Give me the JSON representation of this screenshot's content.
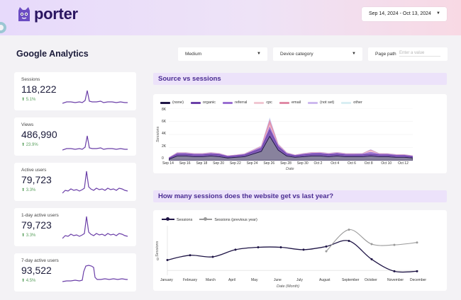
{
  "header": {
    "logo_text": "porter",
    "date_range": "Sep 14, 2024 - Oct 13, 2024"
  },
  "page_title": "Google Analytics",
  "filters": {
    "medium": "Medium",
    "device_category": "Device category",
    "page_path_label": "Page path",
    "page_path_placeholder": "Enter a value"
  },
  "kpis": [
    {
      "label": "Sessions",
      "value": "118,222",
      "change": "5.1%"
    },
    {
      "label": "Views",
      "value": "486,990",
      "change": "23.9%"
    },
    {
      "label": "Active users",
      "value": "79,723",
      "change": "3.3%"
    },
    {
      "label": "1-day active users",
      "value": "79,723",
      "change": "3.3%"
    },
    {
      "label": "7-day active users",
      "value": "93,522",
      "change": "4.5%"
    }
  ],
  "source_section": {
    "title": "Source vs sessions",
    "legend": [
      {
        "name": "(none)",
        "color": "#1f1546"
      },
      {
        "name": "organic",
        "color": "#6b3fa8"
      },
      {
        "name": "referral",
        "color": "#9a6fd1"
      },
      {
        "name": "cpc",
        "color": "#f1c7d2"
      },
      {
        "name": "email",
        "color": "#e08aa6"
      },
      {
        "name": "(not set)",
        "color": "#cdb9ee"
      },
      {
        "name": "other",
        "color": "#d9eef3"
      }
    ],
    "y_ticks": [
      "8K",
      "6K",
      "4K",
      "2K",
      "0"
    ],
    "y_title": "Sessions",
    "x_ticks": [
      "Sep 14",
      "Sep 16",
      "Sep 18",
      "Sep 20",
      "Sep 22",
      "Sep 24",
      "Sep 26",
      "Sep 28",
      "Sep 30",
      "Oct 2",
      "Oct 4",
      "Oct 6",
      "Oct 8",
      "Oct 10",
      "Oct 12"
    ],
    "x_title": "Date"
  },
  "yoy_section": {
    "title": "How many sessions does the website get vs last year?",
    "legend": [
      {
        "name": "Sessions",
        "color": "#1f1546"
      },
      {
        "name": "Sessions (previous year)",
        "color": "#9a9a9a"
      }
    ],
    "y_tick": "0",
    "y_title": "Sessions",
    "x_ticks": [
      "January",
      "February",
      "March",
      "April",
      "May",
      "June",
      "July",
      "August",
      "September",
      "October",
      "November",
      "December"
    ],
    "x_title": "Date (Month)"
  },
  "chart_data": [
    {
      "type": "area",
      "title": "Source vs sessions",
      "xlabel": "Date",
      "ylabel": "Sessions",
      "ylim": [
        0,
        8000
      ],
      "x": [
        "Sep 14",
        "Sep 15",
        "Sep 16",
        "Sep 17",
        "Sep 18",
        "Sep 19",
        "Sep 20",
        "Sep 21",
        "Sep 22",
        "Sep 23",
        "Sep 24",
        "Sep 25",
        "Sep 26",
        "Sep 27",
        "Sep 28",
        "Sep 29",
        "Sep 30",
        "Oct 1",
        "Oct 2",
        "Oct 3",
        "Oct 4",
        "Oct 5",
        "Oct 6",
        "Oct 7",
        "Oct 8",
        "Oct 9",
        "Oct 10",
        "Oct 11",
        "Oct 12",
        "Oct 13"
      ],
      "series": [
        {
          "name": "(none)",
          "values": [
            200,
            700,
            700,
            600,
            600,
            700,
            600,
            400,
            500,
            600,
            1000,
            1400,
            3700,
            1600,
            700,
            500,
            600,
            700,
            700,
            600,
            700,
            600,
            600,
            600,
            700,
            600,
            600,
            500,
            500,
            400
          ]
        },
        {
          "name": "organic",
          "values": [
            150,
            300,
            300,
            280,
            280,
            300,
            300,
            200,
            220,
            260,
            350,
            450,
            1000,
            500,
            300,
            220,
            280,
            320,
            330,
            300,
            320,
            280,
            270,
            280,
            300,
            280,
            270,
            240,
            230,
            200
          ]
        },
        {
          "name": "referral",
          "values": [
            60,
            120,
            120,
            110,
            110,
            120,
            110,
            80,
            90,
            100,
            140,
            200,
            400,
            200,
            120,
            90,
            110,
            120,
            130,
            120,
            130,
            110,
            110,
            110,
            300,
            110,
            110,
            100,
            100,
            90
          ]
        },
        {
          "name": "cpc",
          "values": [
            20,
            50,
            50,
            40,
            40,
            50,
            40,
            30,
            30,
            40,
            60,
            80,
            300,
            90,
            50,
            30,
            40,
            50,
            50,
            40,
            50,
            40,
            40,
            40,
            200,
            40,
            40,
            40,
            40,
            30
          ]
        },
        {
          "name": "email",
          "values": [
            10,
            30,
            30,
            30,
            30,
            30,
            30,
            20,
            20,
            30,
            40,
            60,
            700,
            80,
            30,
            20,
            30,
            30,
            30,
            30,
            30,
            30,
            30,
            30,
            100,
            30,
            30,
            30,
            30,
            20
          ]
        },
        {
          "name": "(not set)",
          "values": [
            10,
            20,
            20,
            20,
            20,
            20,
            20,
            10,
            10,
            20,
            30,
            40,
            250,
            50,
            20,
            10,
            20,
            20,
            20,
            20,
            20,
            20,
            20,
            20,
            60,
            20,
            20,
            20,
            20,
            10
          ]
        },
        {
          "name": "other",
          "values": [
            10,
            20,
            20,
            20,
            20,
            20,
            20,
            10,
            10,
            20,
            20,
            30,
            150,
            40,
            20,
            10,
            20,
            20,
            20,
            20,
            20,
            20,
            20,
            20,
            40,
            20,
            20,
            20,
            20,
            10
          ]
        }
      ]
    },
    {
      "type": "line",
      "title": "How many sessions does the website get vs last year?",
      "xlabel": "Date (Month)",
      "ylabel": "Sessions",
      "categories": [
        "January",
        "February",
        "March",
        "April",
        "May",
        "June",
        "July",
        "August",
        "September",
        "October",
        "November",
        "December"
      ],
      "series": [
        {
          "name": "Sessions",
          "values": [
            0.65,
            0.95,
            0.85,
            1.3,
            1.45,
            1.45,
            1.3,
            1.5,
            1.85,
            0.7,
            -0.05,
            -0.05
          ]
        },
        {
          "name": "Sessions (previous year)",
          "values": [
            null,
            null,
            null,
            null,
            null,
            null,
            null,
            1.2,
            2.55,
            1.65,
            1.6,
            1.75
          ]
        }
      ]
    }
  ]
}
